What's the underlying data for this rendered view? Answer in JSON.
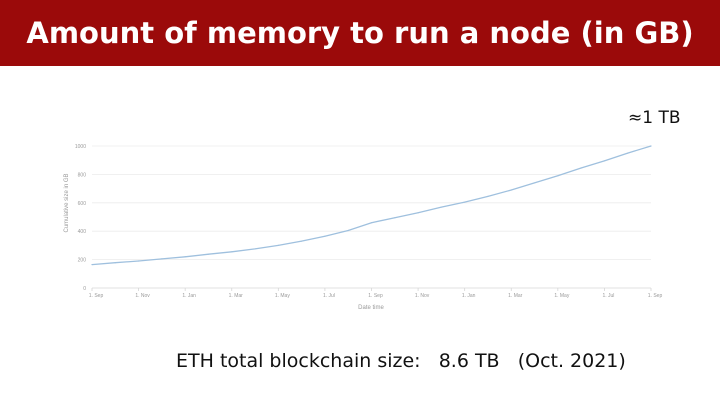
{
  "header": {
    "title": "Amount of memory to run a node (in GB)"
  },
  "annotation": {
    "text": "≈1 TB"
  },
  "caption": {
    "text": "ETH total blockchain size:   8.6 TB   (Oct. 2021)"
  },
  "colors": {
    "title_bar": "#9b0a0a",
    "line": "#9fc0de",
    "grid": "#ececec"
  },
  "chart_data": {
    "type": "line",
    "ylabel": "Cumulative size in GB",
    "xlabel": "Date time",
    "ylim": [
      0,
      1000
    ],
    "yticks": [
      "0",
      "200",
      "400",
      "600",
      "800",
      "1000"
    ],
    "xticks": [
      "1. Sep",
      "1. Nov",
      "1. Jan",
      "1. Mar",
      "1. May",
      "1. Jul",
      "1. Sep",
      "1. Nov",
      "1. Jan",
      "1. Mar",
      "1. May",
      "1. Jul",
      "1. Sep"
    ],
    "grid": true,
    "series": [
      {
        "x": [
          0,
          0.5,
          1,
          1.5,
          2,
          2.5,
          3,
          3.5,
          4,
          4.5,
          5,
          5.5,
          6,
          6.5,
          7,
          7.5,
          8,
          8.5,
          9,
          9.5,
          10,
          10.5,
          11,
          11.5,
          12
        ],
        "values": [
          165,
          178,
          190,
          205,
          220,
          238,
          255,
          275,
          300,
          330,
          365,
          405,
          460,
          495,
          530,
          570,
          605,
          645,
          690,
          740,
          790,
          845,
          895,
          950,
          1000
        ]
      }
    ]
  }
}
